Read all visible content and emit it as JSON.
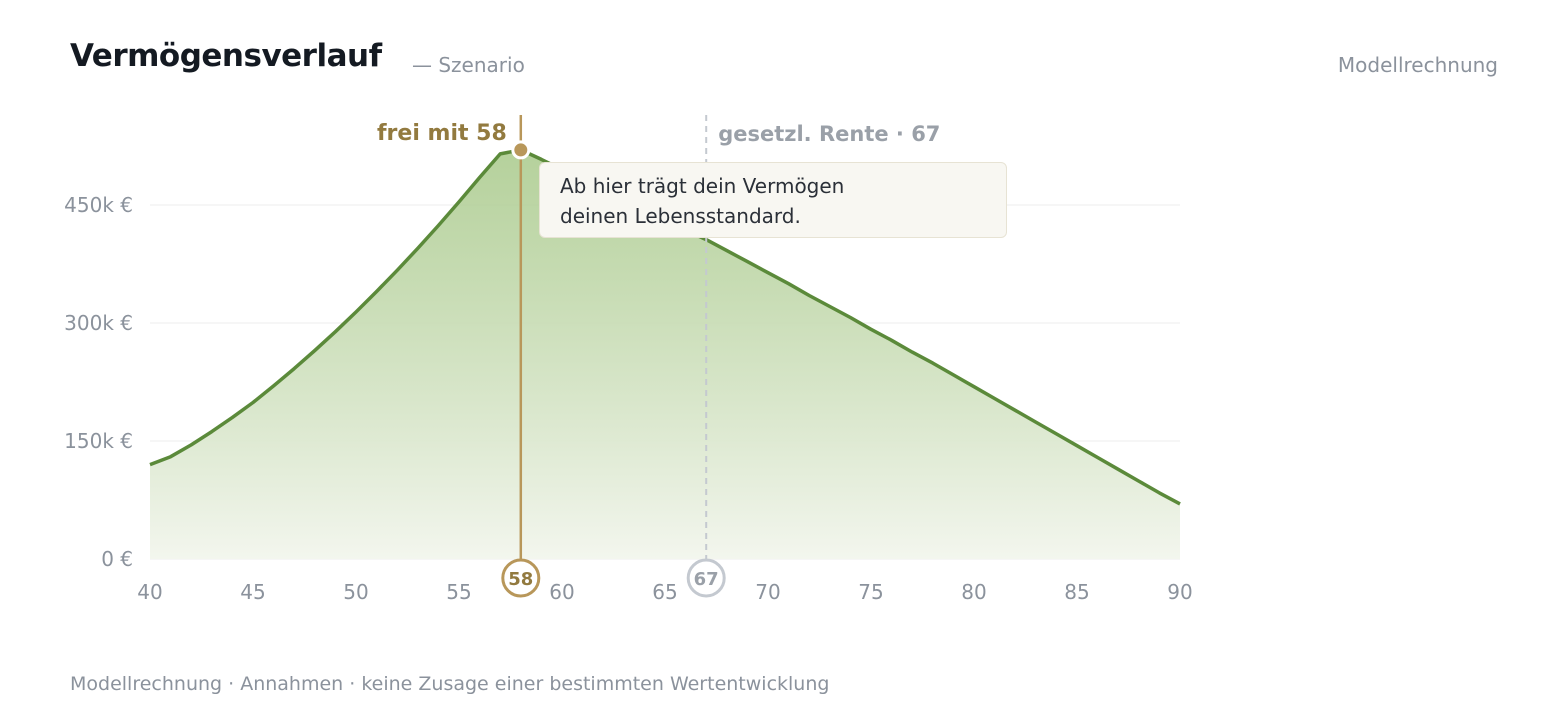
{
  "header": {
    "title": "Vermögensverlauf",
    "subtitle": "— Szenario",
    "badge": "Modellrechnung"
  },
  "footer": {
    "note": "Modellrechnung · Annahmen · keine Zusage einer bestimmten Wertentwicklung"
  },
  "tooltip": {
    "line1": "Ab hier trägt dein Vermögen",
    "line2": "deinen Lebensstandard."
  },
  "colors": {
    "line": "#5b8a3a",
    "area_top": "#a8c98a",
    "area_bottom": "#f3f6ee",
    "fi_marker": "#b8975a",
    "rente_marker": "#c4c9d0",
    "grid": "#ececec"
  },
  "chart_data": {
    "type": "area",
    "x": [
      40,
      41,
      42,
      43,
      44,
      45,
      46,
      47,
      48,
      49,
      50,
      51,
      52,
      53,
      54,
      55,
      56,
      57,
      58,
      59,
      60,
      61,
      62,
      63,
      64,
      65,
      66,
      67,
      68,
      69,
      70,
      71,
      72,
      73,
      74,
      75,
      76,
      77,
      78,
      79,
      80,
      81,
      82,
      83,
      84,
      85,
      86,
      87,
      88,
      89,
      90
    ],
    "y": [
      120000,
      130000,
      145000,
      162000,
      180000,
      199000,
      220000,
      242000,
      265000,
      289000,
      314000,
      340000,
      367000,
      395000,
      424000,
      454000,
      485000,
      515000,
      520000,
      508000,
      495000,
      482000,
      469000,
      456000,
      443000,
      430000,
      418000,
      406000,
      392000,
      378000,
      364000,
      350000,
      335000,
      321000,
      307000,
      292000,
      278000,
      263000,
      249000,
      234000,
      219000,
      204000,
      189000,
      174000,
      159000,
      144000,
      129000,
      114000,
      99000,
      84000,
      70000
    ],
    "xlim": [
      40,
      90
    ],
    "ylim": [
      0,
      450000
    ],
    "x_ticks": [
      40,
      45,
      50,
      55,
      60,
      65,
      70,
      75,
      80,
      85,
      90
    ],
    "y_ticks": [
      {
        "value": 0,
        "label": "0 €"
      },
      {
        "value": 150000,
        "label": "150k €"
      },
      {
        "value": 300000,
        "label": "300k €"
      },
      {
        "value": 450000,
        "label": "450k €"
      }
    ],
    "grid": true,
    "markers": [
      {
        "key": "fi",
        "age": 58,
        "label": "frei mit 58",
        "badge": "58"
      },
      {
        "key": "rente",
        "age": 67,
        "label": "gesetzl. Rente · 67",
        "badge": "67"
      }
    ]
  }
}
